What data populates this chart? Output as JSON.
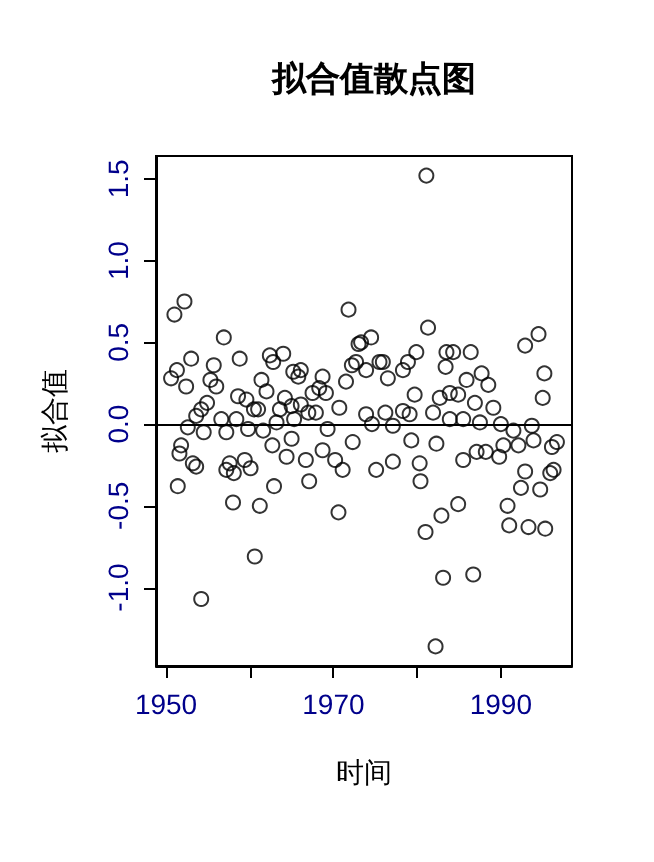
{
  "chart_data": {
    "type": "scatter",
    "title": "拟合值散点图",
    "xlabel": "时间",
    "ylabel": "拟合值",
    "marker": "circle",
    "grid": false,
    "xlim": [
      1948.8,
      1998.5
    ],
    "xticks": [
      1950,
      {
        "value": 1960,
        "label": null
      },
      1970,
      {
        "value": 1980,
        "label": null
      },
      1990
    ],
    "ylim": [
      -1.48,
      1.64
    ],
    "yticks": [
      {
        "value": -1,
        "label": "-1.0"
      },
      -0.5,
      {
        "value": 0,
        "label": "0.0"
      },
      0.5,
      {
        "value": 1,
        "label": "1.0"
      },
      1.5
    ],
    "ref_lines": [
      {
        "axis": "y",
        "value": 0,
        "color": "#000000"
      }
    ],
    "series": [
      {
        "color": "#000000",
        "x": [
          1951.0,
          1952.2,
          1950.6,
          1951.3,
          1952.4,
          1953.0,
          1951.4,
          1951.8,
          1951.6,
          1953.2,
          1953.6,
          1952.6,
          1953.6,
          1954.2,
          1954.5,
          1954.9,
          1955.3,
          1955.7,
          1956.0,
          1956.9,
          1956.6,
          1957.2,
          1957.6,
          1957.2,
          1958.1,
          1958.0,
          1958.4,
          1958.6,
          1958.8,
          1959.6,
          1959.8,
          1959.4,
          1960.1,
          1960.5,
          1961.0,
          1960.6,
          1961.2,
          1961.4,
          1962.0,
          1961.6,
          1962.4,
          1962.8,
          1964.0,
          1962.7,
          1963.2,
          1963.6,
          1964.2,
          1962.9,
          1964.4,
          1965.0,
          1965.2,
          1965.8,
          1966.1,
          1965.3,
          1965.0,
          1966.1,
          1966.7,
          1967.1,
          1967.0,
          1967.5,
          1967.9,
          1968.7,
          1968.3,
          1969.1,
          1969.3,
          1968.7,
          1970.2,
          1970.7,
          1970.6,
          1971.1,
          1971.8,
          1971.5,
          1972.2,
          1972.3,
          1973.0,
          1954.2,
          1973.3,
          1974.5,
          1972.7,
          1973.9,
          1975.5,
          1975.9,
          1976.5,
          1978.3,
          1978.9,
          1979.9,
          1979.7,
          1981.3,
          1981.1,
          1983.5,
          1984.3,
          1986.4,
          1983.4,
          1982.7,
          1983.9,
          1984.9,
          1985.9,
          1987.7,
          1988.5,
          1986.9,
          1989.1,
          1973.9,
          1974.6,
          1976.2,
          1977.1,
          1978.3,
          1979.1,
          1981.9,
          1983.9,
          1985.5,
          1987.5,
          1990.0,
          1991.5,
          1993.7,
          1979.3,
          1982.3,
          1975.1,
          1977.1,
          1980.3,
          1980.4,
          1985.5,
          1987.1,
          1988.2,
          1989.8,
          1990.3,
          1992.1,
          1993.9,
          1996.1,
          1996.7,
          1992.9,
          1992.4,
          1994.7,
          1995.9,
          1996.3,
          1990.8,
          1991.0,
          1993.3,
          1995.3,
          1984.9,
          1982.9,
          1981.0,
          1983.1,
          1986.7,
          1982.2,
          1995.2,
          1995.0,
          1992.9,
          1994.5
        ],
        "values": [
          0.67,
          0.75,
          0.28,
          0.33,
          0.23,
          0.4,
          -0.38,
          -0.13,
          -0.18,
          -0.24,
          -0.26,
          -0.02,
          0.05,
          0.09,
          -0.05,
          0.13,
          0.27,
          0.36,
          0.23,
          0.53,
          0.03,
          -0.05,
          -0.24,
          -0.28,
          -0.3,
          -0.48,
          0.03,
          0.17,
          0.4,
          0.15,
          -0.03,
          -0.22,
          -0.27,
          0.09,
          0.09,
          -0.81,
          -0.5,
          0.27,
          0.2,
          -0.04,
          0.42,
          0.38,
          0.43,
          -0.13,
          0.01,
          0.09,
          0.16,
          -0.38,
          -0.2,
          -0.09,
          0.32,
          0.29,
          0.33,
          0.03,
          0.11,
          0.12,
          -0.22,
          -0.35,
          0.07,
          0.19,
          0.07,
          0.29,
          0.22,
          0.19,
          -0.03,
          -0.16,
          -0.22,
          0.1,
          -0.54,
          -0.28,
          0.7,
          0.26,
          0.36,
          -0.11,
          0.49,
          -1.07,
          0.5,
          0.53,
          0.38,
          0.33,
          0.38,
          0.38,
          0.28,
          0.33,
          0.38,
          0.44,
          0.18,
          0.59,
          1.52,
          0.44,
          0.44,
          0.44,
          0.35,
          0.16,
          0.19,
          0.18,
          0.27,
          0.31,
          0.24,
          0.13,
          0.1,
          0.06,
          0.0,
          0.07,
          -0.01,
          0.08,
          0.06,
          0.07,
          0.03,
          0.03,
          0.01,
          0.0,
          -0.04,
          -0.01,
          -0.1,
          -0.12,
          -0.28,
          -0.23,
          -0.24,
          -0.35,
          -0.22,
          -0.17,
          -0.17,
          -0.2,
          -0.13,
          -0.13,
          -0.1,
          -0.14,
          -0.11,
          -0.29,
          -0.39,
          -0.4,
          -0.3,
          -0.28,
          -0.5,
          -0.62,
          -0.63,
          -0.64,
          -0.49,
          -0.56,
          -0.66,
          -0.94,
          -0.92,
          -1.36,
          0.31,
          0.16,
          0.48,
          0.55
        ]
      }
    ]
  }
}
